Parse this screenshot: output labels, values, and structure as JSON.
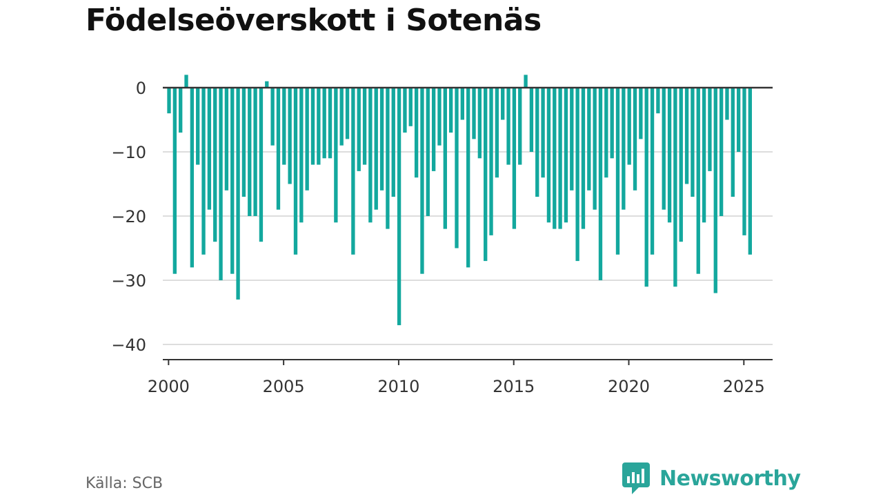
{
  "title": "Födelseöverskott i Sotenäs",
  "source": "Källa: SCB",
  "brand": "Newsworthy",
  "colors": {
    "bar": "#13a89e",
    "zero_line": "#333333",
    "grid": "#dddddd",
    "brand": "#2aa59a"
  },
  "logo_icon": "newsworthy-chart-bubble-icon",
  "chart_data": {
    "type": "bar",
    "title": "Födelseöverskott i Sotenäs",
    "xlabel": "",
    "ylabel": "",
    "x_start": "2000-01",
    "x_interval": "quarter",
    "xlim": [
      1999.75,
      2026.25
    ],
    "ylim": [
      -42.5,
      2
    ],
    "yticks": [
      0,
      -10,
      -20,
      -30,
      -40
    ],
    "ytick_labels": [
      "0",
      "−10",
      "−20",
      "−30",
      "−40"
    ],
    "xticks": [
      2000,
      2005,
      2010,
      2015,
      2020,
      2025
    ],
    "xtick_labels": [
      "2000",
      "2005",
      "2010",
      "2015",
      "2020",
      "2025"
    ],
    "grid": true,
    "legend": "none",
    "values": [
      -4,
      -29,
      -7,
      2,
      -28,
      -12,
      -26,
      -19,
      -24,
      -30,
      -16,
      -29,
      -33,
      -17,
      -20,
      -20,
      -24,
      1,
      -9,
      -19,
      -12,
      -15,
      -26,
      -21,
      -16,
      -12,
      -12,
      -11,
      -11,
      -21,
      -9,
      -8,
      -26,
      -13,
      -12,
      -21,
      -19,
      -16,
      -22,
      -17,
      -37,
      -7,
      -6,
      -14,
      -29,
      -20,
      -13,
      -9,
      -22,
      -7,
      -25,
      -5,
      -28,
      -8,
      -11,
      -27,
      -23,
      -14,
      -5,
      -12,
      -22,
      -12,
      2,
      -10,
      -17,
      -14,
      -21,
      -22,
      -22,
      -21,
      -16,
      -27,
      -22,
      -16,
      -19,
      -30,
      -14,
      -11,
      -26,
      -19,
      -12,
      -16,
      -8,
      -31,
      -26,
      -4,
      -19,
      -21,
      -31,
      -24,
      -15,
      -17,
      -29,
      -21,
      -13,
      -32,
      -20,
      -5,
      -17,
      -10,
      -23,
      -26
    ]
  }
}
